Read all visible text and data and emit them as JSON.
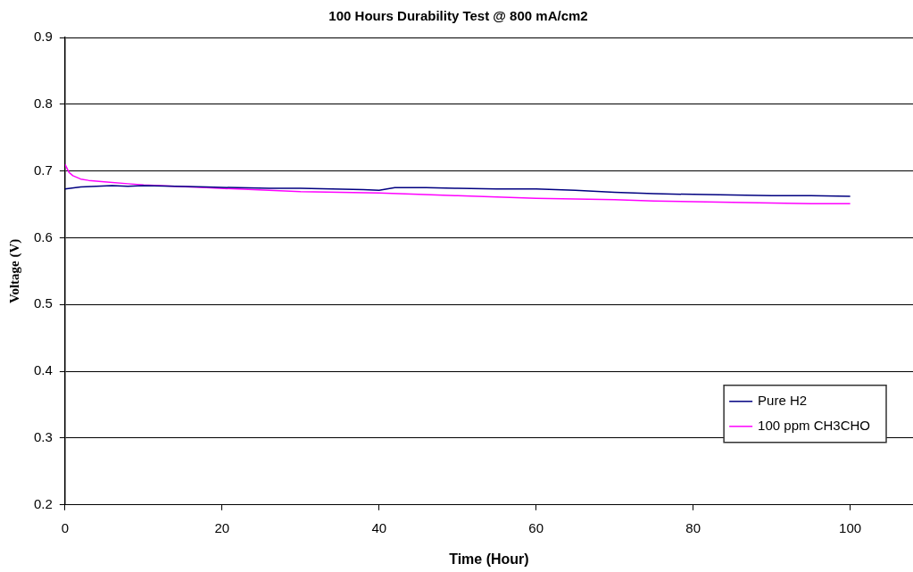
{
  "chart_data": {
    "type": "line",
    "title": "100 Hours Durability Test @ 800 mA/cm2",
    "xlabel": "Time (Hour)",
    "ylabel": "Voltage (V)",
    "xlim": [
      0,
      108
    ],
    "xticks": [
      0,
      20,
      40,
      60,
      80,
      100
    ],
    "ylim": [
      0.2,
      0.9
    ],
    "yticks": [
      0.2,
      0.3,
      0.4,
      0.5,
      0.6,
      0.7,
      0.8,
      0.9
    ],
    "grid": "y",
    "legend": "bottom right",
    "marker": "none",
    "line_style": "solid",
    "series": [
      {
        "name": "Pure H2",
        "color": "#000080",
        "x": [
          0,
          2,
          4,
          6,
          8,
          10,
          14,
          18,
          22,
          26,
          30,
          34,
          38,
          40,
          42,
          46,
          50,
          55,
          60,
          65,
          70,
          75,
          80,
          85,
          90,
          95,
          100
        ],
        "values": [
          0.673,
          0.676,
          0.677,
          0.678,
          0.677,
          0.678,
          0.677,
          0.676,
          0.675,
          0.674,
          0.674,
          0.673,
          0.672,
          0.671,
          0.675,
          0.675,
          0.674,
          0.673,
          0.673,
          0.671,
          0.668,
          0.666,
          0.665,
          0.664,
          0.663,
          0.663,
          0.662
        ]
      },
      {
        "name": "100 ppm CH3CHO",
        "color": "#ff00ff",
        "x": [
          0,
          0.5,
          1,
          2,
          3,
          5,
          8,
          10,
          14,
          18,
          22,
          26,
          30,
          35,
          40,
          45,
          50,
          55,
          60,
          65,
          70,
          75,
          80,
          85,
          90,
          95,
          100
        ],
        "values": [
          0.71,
          0.698,
          0.693,
          0.688,
          0.686,
          0.684,
          0.681,
          0.679,
          0.677,
          0.675,
          0.673,
          0.671,
          0.669,
          0.668,
          0.667,
          0.665,
          0.663,
          0.661,
          0.659,
          0.658,
          0.657,
          0.655,
          0.654,
          0.653,
          0.652,
          0.651,
          0.651
        ]
      }
    ]
  }
}
